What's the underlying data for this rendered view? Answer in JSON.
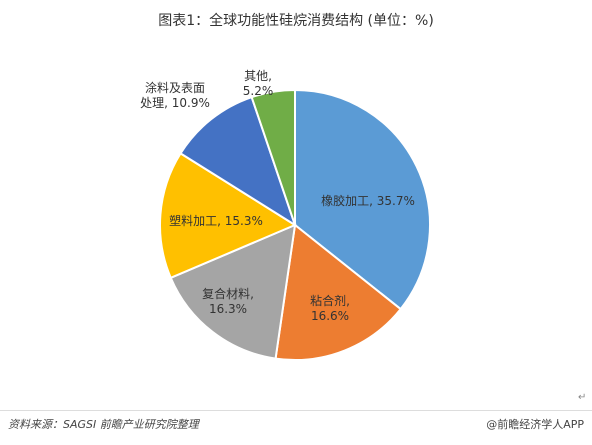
{
  "title": "图表1：全球功能性硅烷消费结构 (单位：%)",
  "chart_data": {
    "type": "pie",
    "slices": [
      {
        "label_line1": "橡胶加工,",
        "label_line2": "35.7%",
        "label": "橡胶加工",
        "value": 35.7,
        "color": "#5B9BD5"
      },
      {
        "label_line1": "粘合剂,",
        "label_line2": "16.6%",
        "label": "粘合剂",
        "value": 16.6,
        "color": "#ED7D31"
      },
      {
        "label_line1": "复合材料,",
        "label_line2": "16.3%",
        "label": "复合材料",
        "value": 16.3,
        "color": "#A5A5A5"
      },
      {
        "label_line1": "塑料加工,",
        "label_line2": "15.3%",
        "label": "塑料加工",
        "value": 15.3,
        "color": "#FFC000"
      },
      {
        "label_line1": "涂料及表面",
        "label_line2": "处理, 10.9%",
        "label": "涂料及表面处理",
        "value": 10.9,
        "color": "#4472C4"
      },
      {
        "label_line1": "其他,",
        "label_line2": "5.2%",
        "label": "其他",
        "value": 5.2,
        "color": "#70AD47"
      }
    ]
  },
  "footer": {
    "source": "资料来源：SAGSI 前瞻产业研究院整理",
    "brand": "@前瞻经济学人APP"
  }
}
